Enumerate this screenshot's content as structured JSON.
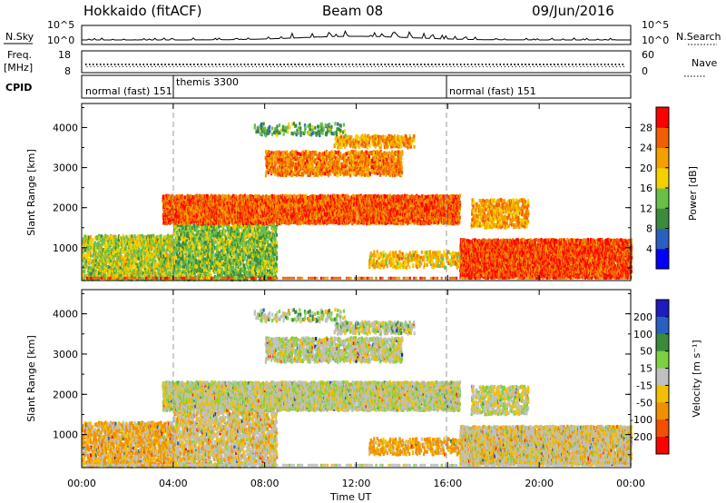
{
  "header": {
    "station": "Hokkaido (fitACF)",
    "beam": "Beam 08",
    "date": "09/Jun/2016"
  },
  "top_panels": {
    "nsky_label": "N.Sky",
    "nsearch_label": "N.Search",
    "nsky_ticks": [
      "10^5",
      "10^0"
    ],
    "nsearch_ticks": [
      "10^5",
      "10^0"
    ],
    "freq_label_line1": "Freq.",
    "freq_label_line2": "[MHz]",
    "freq_ticks": [
      "18",
      "8"
    ],
    "nave_label": "Nave",
    "nave_ticks": [
      "60",
      "0"
    ],
    "cpid_label": "CPID",
    "cpid_segments": [
      {
        "label": "normal (fast) 151",
        "start_h": 0,
        "end_h": 4
      },
      {
        "label": "themis 3300",
        "start_h": 4,
        "end_h": 16
      },
      {
        "label": "normal (fast) 151",
        "start_h": 16,
        "end_h": 24
      }
    ]
  },
  "x_axis": {
    "label": "Time UT",
    "ticks": [
      "00:00",
      "04:00",
      "08:00",
      "12:00",
      "16:00",
      "20:00",
      "00:00"
    ]
  },
  "panels": {
    "ylabel": "Slant Range [km]",
    "y_ticks": [
      "1000",
      "2000",
      "3000",
      "4000"
    ]
  },
  "power_bar": {
    "label": "Power [dB]",
    "ticks": [
      "4",
      "8",
      "12",
      "16",
      "20",
      "24",
      "28"
    ],
    "colors": [
      "#0000ff",
      "#2b5fbf",
      "#3c8a3c",
      "#6abf4b",
      "#f4d000",
      "#f4a000",
      "#f06000",
      "#ff0000"
    ]
  },
  "velocity_bar": {
    "label": "Velocity [m s⁻¹]",
    "ticks": [
      "200",
      "100",
      "50",
      "15",
      "-15",
      "-50",
      "-100",
      "-200"
    ],
    "colors": [
      "#1c1cc0",
      "#2a5fbf",
      "#3a8a3a",
      "#7fd040",
      "#c0c0c0",
      "#f2c000",
      "#f09000",
      "#f05000",
      "#ff0000"
    ]
  },
  "chart_data": {
    "type": "heatmap",
    "title": "Hokkaido (fitACF) Beam 08 09/Jun/2016",
    "xlabel": "Time UT",
    "ylabel": "Slant Range [km]",
    "xlim_hours": [
      0,
      24
    ],
    "ylim_km": [
      180,
      4600
    ],
    "mode_change_hours": [
      4,
      16
    ],
    "power_dB_range": [
      0,
      30
    ],
    "velocity_range": [
      -250,
      250
    ],
    "scatter_regions": [
      {
        "t0": 0.0,
        "t1": 4.0,
        "r0": 200,
        "r1": 1300,
        "power": 16,
        "vel": -30,
        "density": 0.55
      },
      {
        "t0": 4.0,
        "t1": 8.5,
        "r0": 200,
        "r1": 1600,
        "power": 14,
        "vel": -10,
        "density": 0.5
      },
      {
        "t0": 3.5,
        "t1": 16.5,
        "r0": 1600,
        "r1": 2300,
        "power": 26,
        "vel": 0,
        "density": 0.8
      },
      {
        "t0": 8.0,
        "t1": 14.0,
        "r0": 2800,
        "r1": 3400,
        "power": 24,
        "vel": 0,
        "density": 0.55
      },
      {
        "t0": 11.0,
        "t1": 14.5,
        "r0": 3500,
        "r1": 3800,
        "power": 22,
        "vel": 5,
        "density": 0.45
      },
      {
        "t0": 16.5,
        "t1": 24.0,
        "r0": 250,
        "r1": 1200,
        "power": 27,
        "vel": -10,
        "density": 0.8
      },
      {
        "t0": 17.0,
        "t1": 19.5,
        "r0": 1500,
        "r1": 2200,
        "power": 22,
        "vel": 0,
        "density": 0.45
      },
      {
        "t0": 12.5,
        "t1": 16.5,
        "r0": 500,
        "r1": 900,
        "power": 20,
        "vel": -40,
        "density": 0.35
      },
      {
        "t0": 7.5,
        "t1": 11.5,
        "r0": 3800,
        "r1": 4100,
        "power": 12,
        "vel": 10,
        "density": 0.25
      }
    ]
  }
}
